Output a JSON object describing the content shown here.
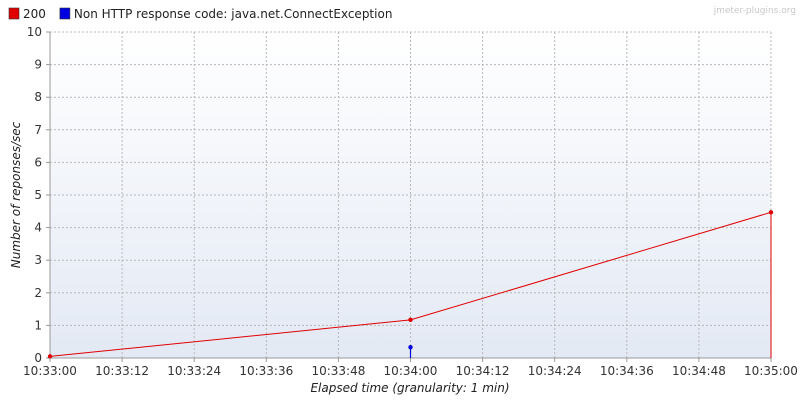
{
  "watermark": "jmeter-plugins.org",
  "chart_data": {
    "type": "line",
    "title": "",
    "xlabel": "Elapsed time (granularity: 1 min)",
    "ylabel": "Number of reponses/sec",
    "ylim": [
      0,
      10
    ],
    "yticks": [
      0,
      1,
      2,
      3,
      4,
      5,
      6,
      7,
      8,
      9,
      10
    ],
    "xlim": [
      "10:33:00",
      "10:35:00"
    ],
    "xticks": [
      "10:33:00",
      "10:33:12",
      "10:33:24",
      "10:33:36",
      "10:33:48",
      "10:34:00",
      "10:34:12",
      "10:34:24",
      "10:34:36",
      "10:34:48",
      "10:35:00"
    ],
    "grid": true,
    "legend_position": "top-left",
    "series": [
      {
        "name": "200",
        "color": "#e00000",
        "points": [
          {
            "x": "10:33:00",
            "y": 0.05
          },
          {
            "x": "10:34:00",
            "y": 1.17
          },
          {
            "x": "10:35:00",
            "y": 4.47
          }
        ]
      },
      {
        "name": "Non HTTP response code: java.net.ConnectException",
        "color": "#0000e0",
        "points": [
          {
            "x": "10:34:00",
            "y": 0.33
          }
        ]
      }
    ]
  }
}
